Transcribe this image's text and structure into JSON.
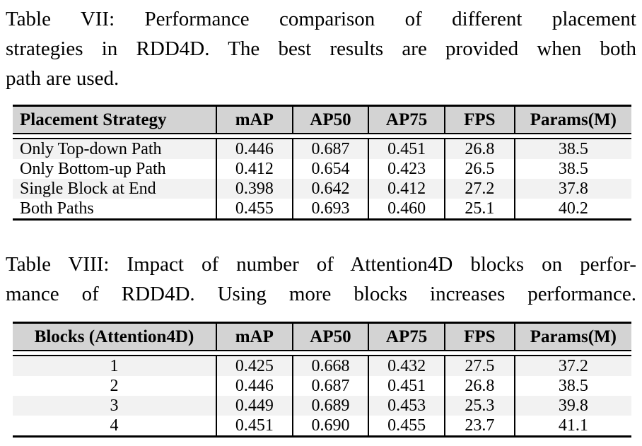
{
  "captions": {
    "table7": {
      "lines": [
        "Table VII: Performance comparison of different placement",
        "strategies in RDD4D. The best results are provided when both",
        "path are used."
      ]
    },
    "table8": {
      "lines": [
        "Table VIII: Impact of number of Attention4D blocks on perfor-",
        "mance of RDD4D. Using more blocks increases performance."
      ]
    }
  },
  "tables": {
    "placement": {
      "columns": [
        "Placement Strategy",
        "mAP",
        "AP50",
        "AP75",
        "FPS",
        "Params(M)"
      ],
      "rows": [
        [
          "Only Top-down Path",
          "0.446",
          "0.687",
          "0.451",
          "26.8",
          "38.5"
        ],
        [
          "Only Bottom-up Path",
          "0.412",
          "0.654",
          "0.423",
          "26.5",
          "38.5"
        ],
        [
          "Single Block at End",
          "0.398",
          "0.642",
          "0.412",
          "27.2",
          "37.8"
        ],
        [
          "Both Paths",
          "0.455",
          "0.693",
          "0.460",
          "25.1",
          "40.2"
        ]
      ]
    },
    "blocks": {
      "columns": [
        "Blocks (Attention4D)",
        "mAP",
        "AP50",
        "AP75",
        "FPS",
        "Params(M)"
      ],
      "rows": [
        [
          "1",
          "0.425",
          "0.668",
          "0.432",
          "27.5",
          "37.2"
        ],
        [
          "2",
          "0.446",
          "0.687",
          "0.451",
          "26.8",
          "38.5"
        ],
        [
          "3",
          "0.449",
          "0.689",
          "0.453",
          "25.3",
          "39.8"
        ],
        [
          "4",
          "0.451",
          "0.690",
          "0.455",
          "23.7",
          "41.1"
        ]
      ]
    }
  },
  "colors": {
    "header_bg": "#d3d3d3",
    "row_stripe": "#f2f2f2",
    "rule": "#000000"
  }
}
